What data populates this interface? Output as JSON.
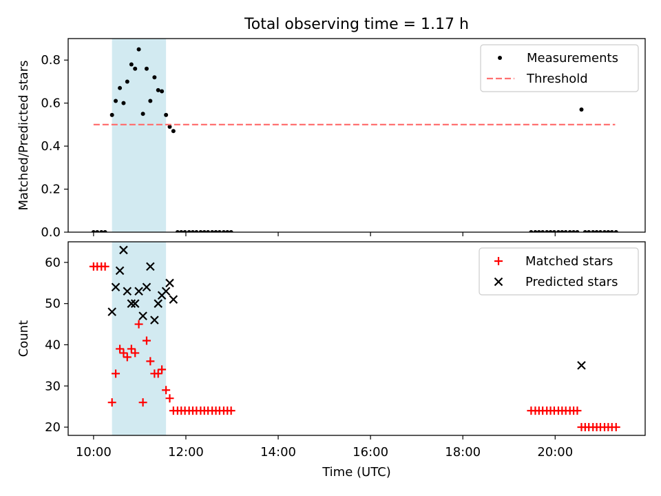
{
  "chart_data": {
    "title": "Total observing time = 1.17 h",
    "xlabel": "Time (UTC)",
    "x_units": "hours UTC",
    "xlim": [
      9.45,
      21.95
    ],
    "xticks": [
      10,
      12,
      14,
      16,
      18,
      20
    ],
    "xtick_labels": [
      "10:00",
      "12:00",
      "14:00",
      "16:00",
      "18:00",
      "20:00"
    ],
    "observing_window": {
      "start": 10.4,
      "end": 11.57,
      "color": "#add8e6"
    },
    "panels": [
      {
        "type": "scatter",
        "ylabel": "Matched/Predicted stars",
        "ylim": [
          0,
          0.9
        ],
        "yticks": [
          0.0,
          0.2,
          0.4,
          0.6,
          0.8
        ],
        "ytick_labels": [
          "0.0",
          "0.2",
          "0.4",
          "0.6",
          "0.8"
        ],
        "legend_position": "top-right",
        "series": [
          {
            "name": "Measurements",
            "marker": "dot",
            "color": "#000000",
            "x": [
              10.0,
              10.08,
              10.17,
              10.25,
              10.4,
              10.48,
              10.57,
              10.65,
              10.73,
              10.82,
              10.9,
              10.98,
              11.07,
              11.15,
              11.23,
              11.32,
              11.4,
              11.48,
              11.57,
              11.65,
              11.73,
              11.82,
              11.9,
              11.98,
              12.07,
              12.15,
              12.23,
              12.32,
              12.4,
              12.48,
              12.57,
              12.65,
              12.73,
              12.82,
              12.9,
              12.98,
              19.48,
              19.57,
              19.65,
              19.73,
              19.82,
              19.9,
              19.98,
              20.07,
              20.15,
              20.23,
              20.32,
              20.4,
              20.48,
              20.57,
              20.65,
              20.73,
              20.82,
              20.9,
              20.98,
              21.07,
              21.15,
              21.23,
              21.32
            ],
            "y": [
              0,
              0,
              0,
              0,
              0.545,
              0.61,
              0.67,
              0.6,
              0.7,
              0.78,
              0.76,
              0.85,
              0.55,
              0.76,
              0.61,
              0.72,
              0.66,
              0.655,
              0.545,
              0.49,
              0.47,
              0,
              0,
              0,
              0,
              0,
              0,
              0,
              0,
              0,
              0,
              0,
              0,
              0,
              0,
              0,
              0,
              0,
              0,
              0,
              0,
              0,
              0,
              0,
              0,
              0,
              0,
              0,
              0,
              0.57,
              0,
              0,
              0,
              0,
              0,
              0,
              0,
              0,
              0
            ]
          },
          {
            "name": "Threshold",
            "marker": "dashed-line",
            "color": "#ff7070",
            "x": [
              10.0,
              21.3
            ],
            "y": [
              0.5,
              0.5
            ]
          }
        ]
      },
      {
        "type": "scatter",
        "ylabel": "Count",
        "ylim": [
          18,
          65
        ],
        "yticks": [
          20,
          30,
          40,
          50,
          60
        ],
        "ytick_labels": [
          "20",
          "30",
          "40",
          "50",
          "60"
        ],
        "legend_position": "top-right",
        "series": [
          {
            "name": "Matched stars",
            "marker": "plus",
            "color": "#ff0000",
            "x": [
              10.0,
              10.08,
              10.17,
              10.25,
              10.4,
              10.48,
              10.57,
              10.65,
              10.73,
              10.82,
              10.9,
              10.98,
              11.07,
              11.15,
              11.23,
              11.32,
              11.4,
              11.48,
              11.57,
              11.65,
              11.73,
              11.82,
              11.9,
              11.98,
              12.07,
              12.15,
              12.23,
              12.32,
              12.4,
              12.48,
              12.57,
              12.65,
              12.73,
              12.82,
              12.9,
              12.98,
              19.48,
              19.57,
              19.65,
              19.73,
              19.82,
              19.9,
              19.98,
              20.07,
              20.15,
              20.23,
              20.32,
              20.4,
              20.48,
              20.57,
              20.65,
              20.73,
              20.82,
              20.9,
              20.98,
              21.07,
              21.15,
              21.23,
              21.32
            ],
            "y": [
              59,
              59,
              59,
              59,
              26,
              33,
              39,
              38,
              37,
              39,
              38,
              45,
              26,
              41,
              36,
              33,
              33,
              34,
              29,
              27,
              24,
              24,
              24,
              24,
              24,
              24,
              24,
              24,
              24,
              24,
              24,
              24,
              24,
              24,
              24,
              24,
              24,
              24,
              24,
              24,
              24,
              24,
              24,
              24,
              24,
              24,
              24,
              24,
              24,
              20,
              20,
              20,
              20,
              20,
              20,
              20,
              20,
              20,
              20
            ]
          },
          {
            "name": "Predicted stars",
            "marker": "x",
            "color": "#000000",
            "x": [
              10.4,
              10.48,
              10.57,
              10.65,
              10.73,
              10.82,
              10.9,
              10.98,
              11.07,
              11.15,
              11.23,
              11.32,
              11.4,
              11.48,
              11.57,
              11.65,
              11.73,
              20.57
            ],
            "y": [
              48,
              54,
              58,
              63,
              53,
              50,
              50,
              53,
              47,
              54,
              59,
              46,
              50,
              52,
              53,
              55,
              51,
              35
            ]
          }
        ]
      }
    ]
  }
}
